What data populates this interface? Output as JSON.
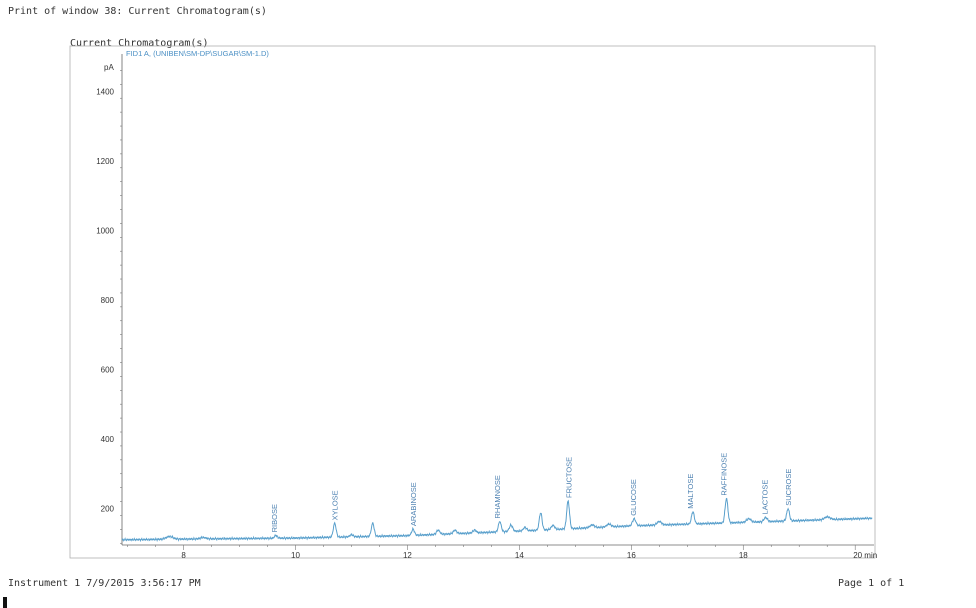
{
  "header": {
    "print_title": "Print of window 38: Current Chromatogram(s)",
    "panel_title": "Current Chromatogram(s)"
  },
  "footer": {
    "instrument": "Instrument 1 7/9/2015 3:56:17 PM",
    "page": "Page 1 of 1"
  },
  "chart_data": {
    "type": "line",
    "signal_label": "FID1 A, (UNIBEN\\SM-DP\\SUGAR\\SM-1.D)",
    "ylabel": "pA",
    "xlabel_unit": "min",
    "xlim": [
      6.9,
      20.3
    ],
    "ylim": [
      95,
      1490
    ],
    "x_ticks": [
      8,
      10,
      12,
      14,
      16,
      18,
      20
    ],
    "x_tick_labels": [
      "8",
      "10",
      "12",
      "14",
      "16",
      "18",
      "20 min"
    ],
    "y_ticks": [
      200,
      400,
      600,
      800,
      1000,
      1200,
      1400
    ],
    "y_tick_labels": [
      "200",
      "400",
      "600",
      "800",
      "1000",
      "1200",
      "1400"
    ],
    "line_color": "#5aa0cc",
    "baseline": [
      [
        6.9,
        110
      ],
      [
        8.0,
        112
      ],
      [
        10.0,
        115
      ],
      [
        12.0,
        122
      ],
      [
        14.0,
        135
      ],
      [
        16.0,
        150
      ],
      [
        18.0,
        160
      ],
      [
        20.3,
        172
      ]
    ],
    "peaks": [
      {
        "x": 7.75,
        "h": 8,
        "w": 0.06
      },
      {
        "x": 8.35,
        "h": 4,
        "w": 0.05
      },
      {
        "x": 9.65,
        "h": 8,
        "w": 0.025
      },
      {
        "x": 10.7,
        "h": 40,
        "w": 0.025
      },
      {
        "x": 11.0,
        "h": 6,
        "w": 0.03
      },
      {
        "x": 11.38,
        "h": 38,
        "w": 0.025
      },
      {
        "x": 12.1,
        "h": 18,
        "w": 0.025
      },
      {
        "x": 12.55,
        "h": 12,
        "w": 0.03
      },
      {
        "x": 12.85,
        "h": 10,
        "w": 0.03
      },
      {
        "x": 13.2,
        "h": 8,
        "w": 0.03
      },
      {
        "x": 13.65,
        "h": 30,
        "w": 0.025
      },
      {
        "x": 13.85,
        "h": 18,
        "w": 0.03
      },
      {
        "x": 14.1,
        "h": 10,
        "w": 0.03
      },
      {
        "x": 14.38,
        "h": 50,
        "w": 0.025
      },
      {
        "x": 14.6,
        "h": 12,
        "w": 0.03
      },
      {
        "x": 14.87,
        "h": 80,
        "w": 0.025
      },
      {
        "x": 15.3,
        "h": 8,
        "w": 0.04
      },
      {
        "x": 15.6,
        "h": 8,
        "w": 0.04
      },
      {
        "x": 16.05,
        "h": 20,
        "w": 0.03
      },
      {
        "x": 16.5,
        "h": 10,
        "w": 0.04
      },
      {
        "x": 17.1,
        "h": 35,
        "w": 0.025
      },
      {
        "x": 17.7,
        "h": 70,
        "w": 0.025
      },
      {
        "x": 18.1,
        "h": 10,
        "w": 0.04
      },
      {
        "x": 18.4,
        "h": 12,
        "w": 0.03
      },
      {
        "x": 18.8,
        "h": 35,
        "w": 0.025
      },
      {
        "x": 19.5,
        "h": 8,
        "w": 0.05
      }
    ],
    "annotations": [
      {
        "label": "RIBOSE",
        "x": 9.62
      },
      {
        "label": "XYLOSE",
        "x": 10.7
      },
      {
        "label": "ARABINOSE",
        "x": 12.1
      },
      {
        "label": "RHAMNOSE",
        "x": 13.6
      },
      {
        "label": "FRUCTOSE",
        "x": 14.88
      },
      {
        "label": "GLUCOSE",
        "x": 16.03
      },
      {
        "label": "MALTOSE",
        "x": 17.05
      },
      {
        "label": "RAFFINOSE",
        "x": 17.65
      },
      {
        "label": "LACTOSE",
        "x": 18.38
      },
      {
        "label": "SUCROSE",
        "x": 18.8
      }
    ]
  }
}
